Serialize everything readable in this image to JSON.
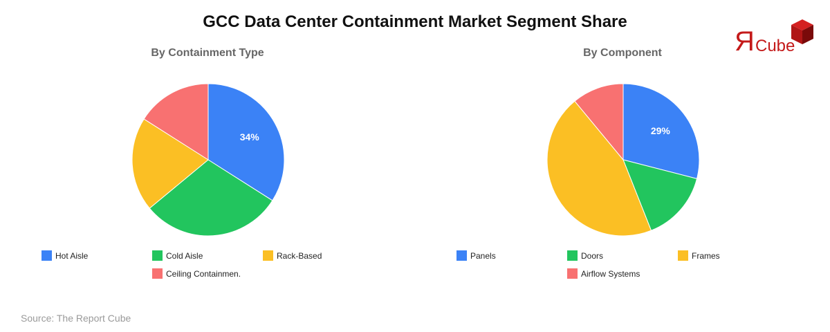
{
  "title": "GCC Data Center Containment Market Segment Share",
  "logo": {
    "mark": "Я",
    "text": "Cube",
    "color": "#c41a1a"
  },
  "source": "Source: The Report Cube",
  "colors": {
    "blue": "#3b82f6",
    "green": "#22c55e",
    "yellow": "#fbbf24",
    "red": "#f87171"
  },
  "chart_data": [
    {
      "type": "pie",
      "title": "By Containment Type",
      "categories": [
        "Hot Aisle",
        "Cold Aisle",
        "Rack-Based",
        "Ceiling Containmen."
      ],
      "values": [
        34,
        30,
        20,
        16
      ],
      "colors": [
        "#3b82f6",
        "#22c55e",
        "#fbbf24",
        "#f87171"
      ],
      "labels_shown": [
        "34%",
        "",
        "",
        ""
      ],
      "start_angle": 0,
      "direction": "clockwise",
      "legend_position": "bottom"
    },
    {
      "type": "pie",
      "title": "By Component",
      "categories": [
        "Panels",
        "Doors",
        "Frames",
        "Airflow Systems"
      ],
      "values": [
        29,
        15,
        45,
        11
      ],
      "colors": [
        "#3b82f6",
        "#22c55e",
        "#fbbf24",
        "#f87171"
      ],
      "labels_shown": [
        "29%",
        "",
        "",
        ""
      ],
      "start_angle": 0,
      "direction": "clockwise",
      "legend_position": "bottom"
    }
  ]
}
